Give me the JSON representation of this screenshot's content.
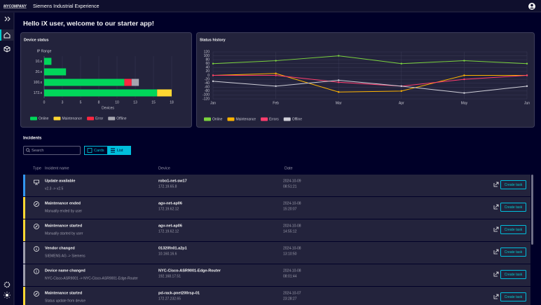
{
  "topbar": {
    "logo": "MYCOMPANY",
    "app_name": "Siemens Industrial Experience"
  },
  "welcome": "Hello iX user, welcome to our starter app!",
  "chart_data": [
    {
      "type": "bar",
      "orientation": "horizontal",
      "stacked": true,
      "title": "Device status",
      "y_label": "IP Range",
      "x_label": "Devices",
      "categories": [
        "10.x",
        "20.x",
        "100.x",
        "172.x"
      ],
      "series": [
        {
          "name": "Online",
          "color": "#01d65a",
          "values": [
            1,
            3,
            11,
            15.5
          ]
        },
        {
          "name": "Maintenance",
          "color": "#ffd732",
          "values": [
            0,
            0,
            0,
            2
          ]
        },
        {
          "name": "Error",
          "color": "#ff2640",
          "values": [
            0,
            0,
            1,
            0
          ]
        },
        {
          "name": "Offline",
          "color": "#a6a6b0",
          "values": [
            0,
            0,
            1,
            0
          ]
        }
      ],
      "xlim": [
        0,
        17.5
      ],
      "xticks": [
        0,
        {
          "value": 2.5,
          "label": "3"
        },
        5,
        {
          "value": 7.5,
          "label": "8"
        },
        10,
        {
          "value": 12.5,
          "label": "13"
        },
        15,
        {
          "value": 17.5,
          "label": "18"
        }
      ],
      "grid": true,
      "legend": "bottom"
    },
    {
      "type": "line",
      "title": "Status history",
      "categories": [
        "Jan",
        "Feb",
        "Mar",
        "Apr",
        "May",
        "Jun"
      ],
      "series": [
        {
          "name": "Online",
          "color": "#7bd33e",
          "values": [
            60,
            75,
            100,
            60,
            75,
            60
          ]
        },
        {
          "name": "Maintenance",
          "color": "#ffb400",
          "values": [
            0,
            10,
            -85,
            -80,
            0,
            0
          ]
        },
        {
          "name": "Errors",
          "color": "#ff3d6e",
          "values": [
            0,
            0,
            -35,
            -55,
            -20,
            0
          ]
        },
        {
          "name": "Offline",
          "color": "#cfcfd8",
          "values": [
            -30,
            -55,
            -25,
            -55,
            -90,
            -55
          ]
        }
      ],
      "ylim": [
        -120,
        120
      ],
      "yticks": [
        120,
        100,
        80,
        60,
        40,
        20,
        0,
        -20,
        -40,
        -60,
        -80,
        -100,
        -120
      ],
      "grid": true,
      "legend": "bottom"
    }
  ],
  "incidents": {
    "title": "Incidents",
    "search_placeholder": "Search",
    "view_toggle": [
      "Cards",
      "List"
    ],
    "columns": [
      "Type",
      "Incident name",
      "Device",
      "Date"
    ],
    "rows": [
      {
        "color": "#3296f0",
        "name": "Update available",
        "detail": "v2.3 -> v2.5",
        "device": "robo1-net-sw17",
        "ip": "172.19.65.8",
        "date": "2024-10-09",
        "time": "08:51:21",
        "action": "Create task"
      },
      {
        "color": "#ffd732",
        "name": "Maintenance ended",
        "detail": "Manually ended by user",
        "device": "agv-net-ap06",
        "ip": "172.19.62.12",
        "date": "2024-10-08",
        "time": "15:20:07",
        "action": "Create task"
      },
      {
        "color": "#ffd732",
        "name": "Maintenance started",
        "detail": "Manually started by user",
        "device": "agv-net-ap06",
        "ip": "172.19.62.12",
        "date": "2024-10-08",
        "time": "14:55:12",
        "action": "Create task"
      },
      {
        "color": "#9d9dac",
        "name": "Vendor changed",
        "detail": "SIEMENS AG -> Siemens",
        "device": "01320fn01.a2p1",
        "ip": "10.160.16.6",
        "date": "2024-10-08",
        "time": "13:10:50",
        "action": "Create task"
      },
      {
        "color": "#9d9dac",
        "name": "Device name changed",
        "detail": "NYC-Cisco-ASR9001 -> NYC-Cisco-ASR9001-Edge-Router",
        "device": "NYC-Cisco-ASR9001-Edge-Router",
        "ip": "192.168.17.51",
        "date": "2024-10-08",
        "time": "08:01:44",
        "action": "Create task"
      },
      {
        "color": "#ffd732",
        "name": "Maintenance started",
        "detail": "Status update from device",
        "device": "pd-rack-pnet200rsp-01",
        "ip": "172.27.232.65",
        "date": "2024-10-07",
        "time": "23:28:27",
        "action": "Create task"
      }
    ]
  }
}
